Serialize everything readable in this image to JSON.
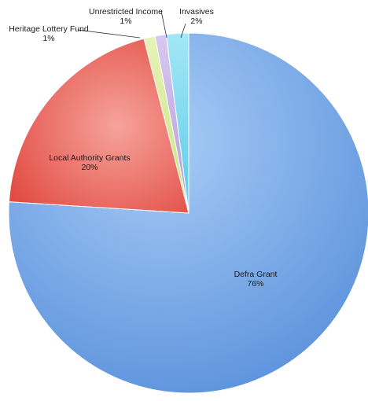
{
  "chart_data": {
    "type": "pie",
    "title": "",
    "slices": [
      {
        "label": "Defra Grant",
        "percent_label": "76%",
        "value": 76,
        "color": "#86b3ec"
      },
      {
        "label": "Local Authority Grants",
        "percent_label": "20%",
        "value": 20,
        "color": "#e8524a"
      },
      {
        "label": "Heritage Lottery Fund",
        "percent_label": "1%",
        "value": 1,
        "color": "#d6ec8e"
      },
      {
        "label": "Unrestricted Income",
        "percent_label": "1%",
        "value": 1,
        "color": "#c7b0e6"
      },
      {
        "label": "Invasives",
        "percent_label": "2%",
        "value": 2,
        "color": "#7fd8ee"
      }
    ]
  }
}
